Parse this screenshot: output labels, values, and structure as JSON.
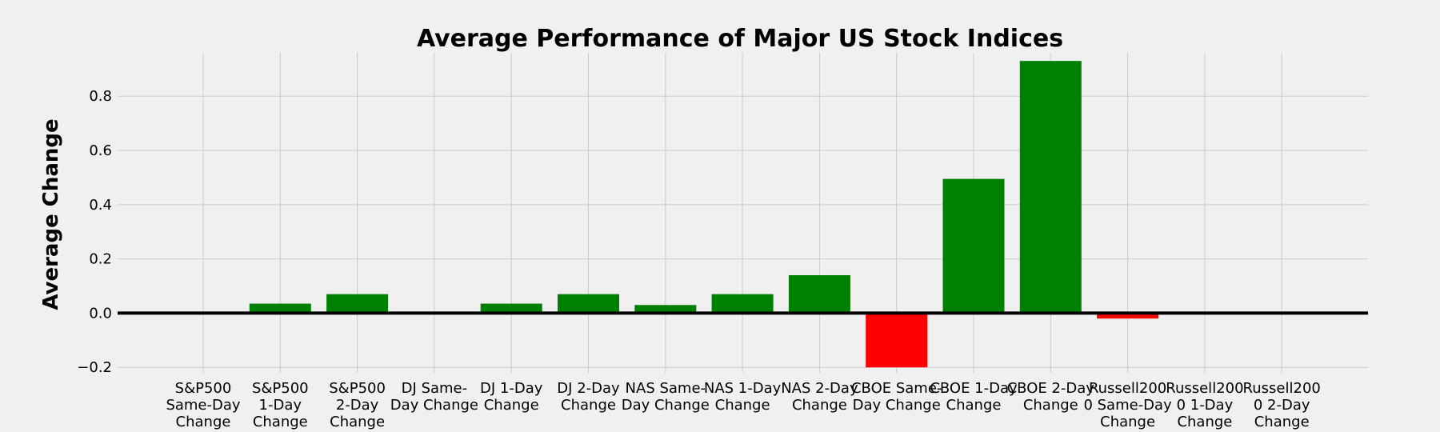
{
  "chart_data": {
    "type": "bar",
    "title": "Average Performance of Major US Stock Indices",
    "xlabel": "",
    "ylabel": "Average Change",
    "ylim": [
      -0.22,
      0.96
    ],
    "yticks": [
      -0.2,
      0.0,
      0.2,
      0.4,
      0.6,
      0.8
    ],
    "ytick_labels": [
      "−0.2",
      "0.0",
      "0.2",
      "0.4",
      "0.6",
      "0.8"
    ],
    "grid": true,
    "categories": [
      "S&P500 Same-Day Change",
      "S&P500 1-Day Change",
      "S&P500 2-Day Change",
      "DJ Same-Day Change",
      "DJ 1-Day Change",
      "DJ 2-Day Change",
      "NAS Same-Day Change",
      "NAS 1-Day Change",
      "NAS 2-Day Change",
      "CBOE Same-Day Change",
      "CBOE 1-Day Change",
      "CBOE 2-Day Change",
      "Russell2000 Same-Day Change",
      "Russell2000 1-Day Change",
      "Russell2000 2-Day Change"
    ],
    "category_tick_lines": [
      [
        "S&P500",
        "Same-Day",
        "Change"
      ],
      [
        "S&P500",
        "1-Day",
        "Change"
      ],
      [
        "S&P500",
        "2-Day",
        "Change"
      ],
      [
        "DJ Same-",
        "Day Change"
      ],
      [
        "DJ 1-Day",
        "Change"
      ],
      [
        "DJ 2-Day",
        "Change"
      ],
      [
        "NAS Same-",
        "Day Change"
      ],
      [
        "NAS 1-Day",
        "Change"
      ],
      [
        "NAS 2-Day",
        "Change"
      ],
      [
        "CBOE Same-",
        "Day Change"
      ],
      [
        "CBOE 1-Day",
        "Change"
      ],
      [
        "CBOE 2-Day",
        "Change"
      ],
      [
        "Russell200",
        "0 Same-Day",
        "Change"
      ],
      [
        "Russell200",
        "0 1-Day",
        "Change"
      ],
      [
        "Russell200",
        "0 2-Day",
        "Change"
      ]
    ],
    "values": [
      0.0,
      0.035,
      0.07,
      0.0,
      0.035,
      0.07,
      0.03,
      0.07,
      0.14,
      -0.2,
      0.495,
      0.93,
      -0.02,
      0.0,
      0.0
    ],
    "colors": {
      "positive": "#008000",
      "negative": "#ff0000",
      "background": "#f0f0f0",
      "grid": "#cbcbcb",
      "zero_line": "#000000"
    }
  }
}
